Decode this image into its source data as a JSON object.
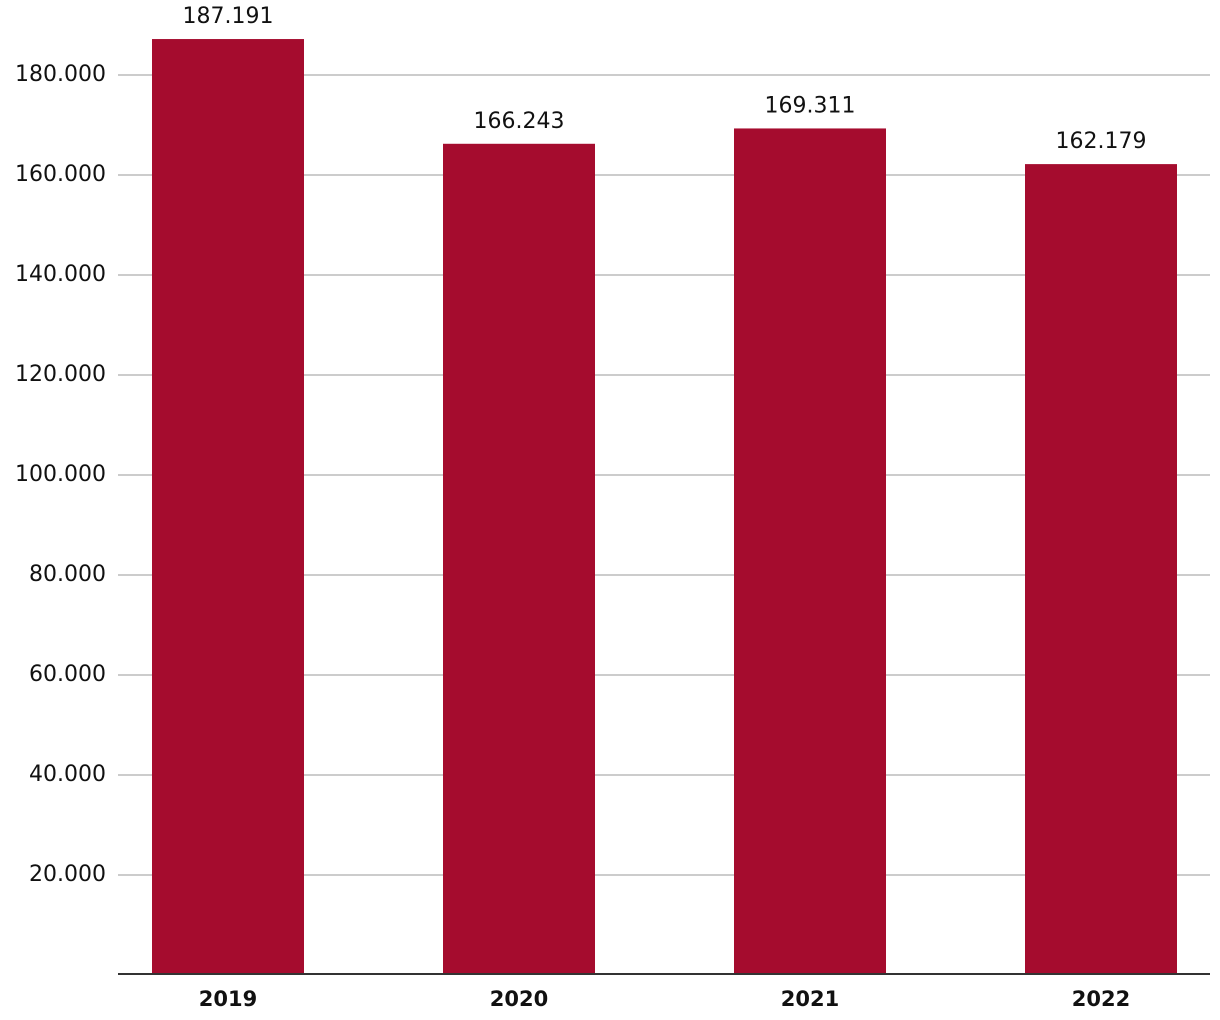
{
  "chart_data": {
    "type": "bar",
    "categories": [
      "2019",
      "2020",
      "2021",
      "2022"
    ],
    "values": [
      187191,
      166243,
      169311,
      162179
    ],
    "value_labels": [
      "187.191",
      "166.243",
      "169.311",
      "162.179"
    ],
    "color": "#a50c2e",
    "ylim": [
      0,
      190000
    ],
    "yticks": [
      {
        "value": 20000,
        "label": "20.000"
      },
      {
        "value": 40000,
        "label": "40.000"
      },
      {
        "value": 60000,
        "label": "60.000"
      },
      {
        "value": 80000,
        "label": "80.000"
      },
      {
        "value": 100000,
        "label": "100.000"
      },
      {
        "value": 120000,
        "label": "120.000"
      },
      {
        "value": 140000,
        "label": "140.000"
      },
      {
        "value": 160000,
        "label": "160.000"
      },
      {
        "value": 180000,
        "label": "180.000"
      }
    ],
    "grid": true
  }
}
